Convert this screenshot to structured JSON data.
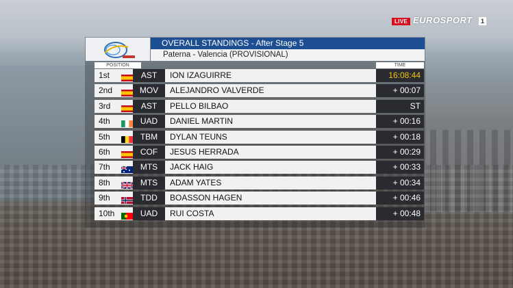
{
  "broadcast": {
    "live_label": "LIVE",
    "channel_name": "EUROSPORT",
    "channel_number": "1",
    "live_color": "#d50f1e"
  },
  "standings": {
    "title": "OVERALL STANDINGS - After Stage 5",
    "subtitle": "Paterna - Valencia (PROVISIONAL)",
    "position_header": "POSITION",
    "time_header": "TIME",
    "title_bar_color": "#1c4e91",
    "leader_time_color": "#f1c40f",
    "rows": [
      {
        "position": "1st",
        "flag": "ESP",
        "team": "AST",
        "rider": "ION IZAGUIRRE",
        "time": "16:08:44"
      },
      {
        "position": "2nd",
        "flag": "ESP",
        "team": "MOV",
        "rider": "ALEJANDRO VALVERDE",
        "time": "+ 00:07"
      },
      {
        "position": "3rd",
        "flag": "ESP",
        "team": "AST",
        "rider": "PELLO BILBAO",
        "time": "ST"
      },
      {
        "position": "4th",
        "flag": "IRL",
        "team": "UAD",
        "rider": "DANIEL MARTIN",
        "time": "+ 00:16"
      },
      {
        "position": "5th",
        "flag": "BEL",
        "team": "TBM",
        "rider": "DYLAN TEUNS",
        "time": "+ 00:18"
      },
      {
        "position": "6th",
        "flag": "ESP",
        "team": "COF",
        "rider": "JESUS HERRADA",
        "time": "+ 00:29"
      },
      {
        "position": "7th",
        "flag": "AUS",
        "team": "MTS",
        "rider": "JACK HAIG",
        "time": "+ 00:33"
      },
      {
        "position": "8th",
        "flag": "GBR",
        "team": "MTS",
        "rider": "ADAM YATES",
        "time": "+ 00:34"
      },
      {
        "position": "9th",
        "flag": "NOR",
        "team": "TDD",
        "rider": "BOASSON HAGEN",
        "time": "+ 00:46"
      },
      {
        "position": "10th",
        "flag": "POR",
        "team": "UAD",
        "rider": "RUI COSTA",
        "time": "+ 00:48"
      }
    ]
  }
}
